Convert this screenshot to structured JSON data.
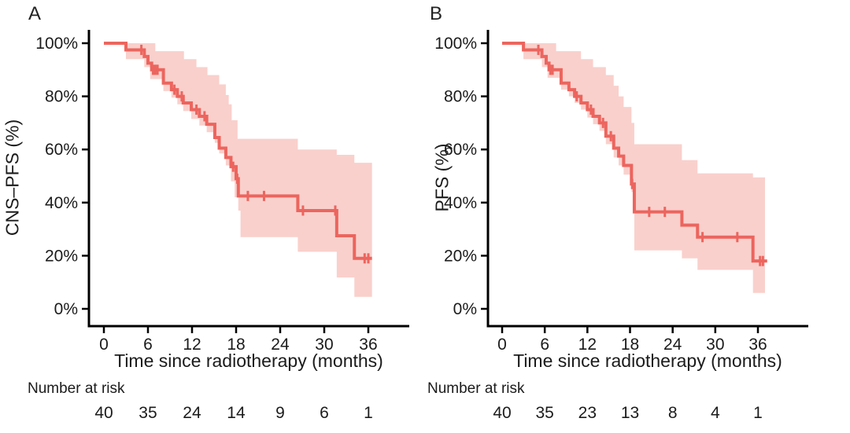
{
  "figure": {
    "background": "#ffffff",
    "text_color": "#1b1b1b",
    "axis_color": "#000000"
  },
  "chart_data": [
    {
      "type": "line",
      "subtype": "kaplan-meier-step-curve-with-confidence-band",
      "panel_label": "A",
      "ylabel": "CNS–PFS (%)",
      "xlabel": "Time since radiotherapy (months)",
      "x_ticks": [
        0,
        6,
        12,
        18,
        24,
        30,
        36
      ],
      "y_ticks_percent": [
        0,
        20,
        40,
        60,
        80,
        100
      ],
      "xlim": [
        0,
        41
      ],
      "ylim_percent": [
        0,
        100
      ],
      "grid": "off",
      "legend": "none",
      "line_color": "#ec655e",
      "band_color": "#f9d0cc",
      "end_time": 36.5,
      "survival_steps_percent": [
        [
          0,
          100
        ],
        [
          3,
          97.5
        ],
        [
          5.5,
          95
        ],
        [
          6,
          92.5
        ],
        [
          6.5,
          90
        ],
        [
          8.1,
          85
        ],
        [
          9.2,
          82.5
        ],
        [
          10,
          80
        ],
        [
          10.8,
          77.5
        ],
        [
          11.9,
          75
        ],
        [
          13,
          72.5
        ],
        [
          14,
          69.5
        ],
        [
          15.1,
          64.5
        ],
        [
          15.7,
          60.5
        ],
        [
          16.6,
          57
        ],
        [
          17.3,
          53.5
        ],
        [
          18,
          49
        ],
        [
          18.3,
          42.5
        ],
        [
          26.4,
          37
        ],
        [
          31.7,
          27.5
        ],
        [
          34.1,
          19
        ]
      ],
      "censor_marks": [
        [
          5.1,
          97.5
        ],
        [
          6.7,
          90
        ],
        [
          7,
          90
        ],
        [
          7.3,
          90
        ],
        [
          9.6,
          82.5
        ],
        [
          10.6,
          80
        ],
        [
          12.6,
          75
        ],
        [
          13.7,
          72.5
        ],
        [
          17.6,
          53.5
        ],
        [
          18.15,
          49
        ],
        [
          19.6,
          42.5
        ],
        [
          21.8,
          42.5
        ],
        [
          27.1,
          37
        ],
        [
          31.5,
          37
        ],
        [
          35.5,
          19
        ],
        [
          36,
          19
        ]
      ],
      "ci_upper_steps": [
        [
          3,
          100
        ],
        [
          7,
          97
        ],
        [
          10.9,
          94
        ],
        [
          12.6,
          91
        ],
        [
          14.1,
          88
        ],
        [
          15.7,
          84.5
        ],
        [
          16.6,
          80.5
        ],
        [
          17,
          77
        ],
        [
          17.4,
          71
        ],
        [
          18.2,
          64
        ],
        [
          26.4,
          60
        ],
        [
          31.7,
          58
        ],
        [
          34.1,
          55
        ],
        [
          36.5,
          55
        ]
      ],
      "ci_lower_steps": [
        [
          3,
          94
        ],
        [
          5.5,
          91
        ],
        [
          6.3,
          86.5
        ],
        [
          8.1,
          82
        ],
        [
          9.2,
          79.5
        ],
        [
          10,
          77
        ],
        [
          10.8,
          74.5
        ],
        [
          11.9,
          71.5
        ],
        [
          13,
          69
        ],
        [
          14,
          66.5
        ],
        [
          15.1,
          62.5
        ],
        [
          15.7,
          58.5
        ],
        [
          16.6,
          54
        ],
        [
          17.3,
          48
        ],
        [
          17.8,
          42
        ],
        [
          18.3,
          37
        ],
        [
          18.6,
          27
        ],
        [
          26.4,
          21.5
        ],
        [
          31.7,
          11.8
        ],
        [
          34.1,
          4.5
        ],
        [
          36.5,
          4.5
        ]
      ],
      "risk_table_label": "Number at risk",
      "risk_times": [
        0,
        6,
        12,
        18,
        24,
        30,
        36
      ],
      "number_at_risk": [
        40,
        35,
        24,
        14,
        9,
        6,
        1
      ]
    },
    {
      "type": "line",
      "subtype": "kaplan-meier-step-curve-with-confidence-band",
      "panel_label": "B",
      "ylabel": "PFS (%)",
      "xlabel": "Time since radiotherapy (months)",
      "x_ticks": [
        0,
        6,
        12,
        18,
        24,
        30,
        36
      ],
      "y_ticks_percent": [
        0,
        20,
        40,
        60,
        80,
        100
      ],
      "xlim": [
        0,
        41
      ],
      "ylim_percent": [
        0,
        100
      ],
      "grid": "off",
      "legend": "none",
      "line_color": "#ec655e",
      "band_color": "#f9d0cc",
      "end_time": 37.3,
      "survival_steps_percent": [
        [
          0,
          100
        ],
        [
          3,
          97.5
        ],
        [
          5.6,
          95
        ],
        [
          6.2,
          92.5
        ],
        [
          6.6,
          90
        ],
        [
          8.3,
          85
        ],
        [
          9.4,
          82.5
        ],
        [
          10.2,
          80
        ],
        [
          11.1,
          77.5
        ],
        [
          12,
          75
        ],
        [
          12.8,
          72.5
        ],
        [
          13.7,
          70
        ],
        [
          14.6,
          65
        ],
        [
          15.7,
          60.5
        ],
        [
          16.4,
          57.5
        ],
        [
          17.1,
          54
        ],
        [
          18.2,
          47
        ],
        [
          18.6,
          36.5
        ],
        [
          25.3,
          31.5
        ],
        [
          27.5,
          27
        ],
        [
          35.3,
          18
        ]
      ],
      "censor_marks": [
        [
          5.1,
          97.5
        ],
        [
          6.8,
          90
        ],
        [
          7.1,
          90
        ],
        [
          10.5,
          80
        ],
        [
          12.5,
          75
        ],
        [
          14.2,
          70
        ],
        [
          15.3,
          65
        ],
        [
          18.3,
          47
        ],
        [
          20.7,
          36.5
        ],
        [
          22.9,
          36.5
        ],
        [
          28.2,
          27
        ],
        [
          33.1,
          27
        ],
        [
          36.3,
          18
        ],
        [
          36.7,
          18
        ]
      ],
      "ci_upper_steps": [
        [
          3,
          100
        ],
        [
          7.6,
          97
        ],
        [
          11.1,
          94
        ],
        [
          12.8,
          91
        ],
        [
          14.6,
          88
        ],
        [
          15.7,
          84
        ],
        [
          16.4,
          80
        ],
        [
          17.1,
          76
        ],
        [
          18.2,
          70
        ],
        [
          18.6,
          62
        ],
        [
          25.3,
          56
        ],
        [
          27.5,
          51
        ],
        [
          35.3,
          49.5
        ],
        [
          37,
          49.5
        ]
      ],
      "ci_lower_steps": [
        [
          3,
          94
        ],
        [
          5.6,
          91
        ],
        [
          6.4,
          87
        ],
        [
          8.3,
          82.5
        ],
        [
          9.4,
          80
        ],
        [
          10.2,
          77.5
        ],
        [
          11.1,
          75
        ],
        [
          12,
          72
        ],
        [
          12.8,
          69.5
        ],
        [
          13.7,
          67
        ],
        [
          14.6,
          62
        ],
        [
          15.7,
          57
        ],
        [
          16.4,
          54
        ],
        [
          17.1,
          50.5
        ],
        [
          18.2,
          44
        ],
        [
          18.6,
          22
        ],
        [
          25.3,
          19
        ],
        [
          27.5,
          14.7
        ],
        [
          35.3,
          6
        ],
        [
          37,
          6
        ]
      ],
      "risk_table_label": "Number at risk",
      "risk_times": [
        0,
        6,
        12,
        18,
        24,
        30,
        36
      ],
      "number_at_risk": [
        40,
        35,
        23,
        13,
        8,
        4,
        1
      ]
    }
  ]
}
